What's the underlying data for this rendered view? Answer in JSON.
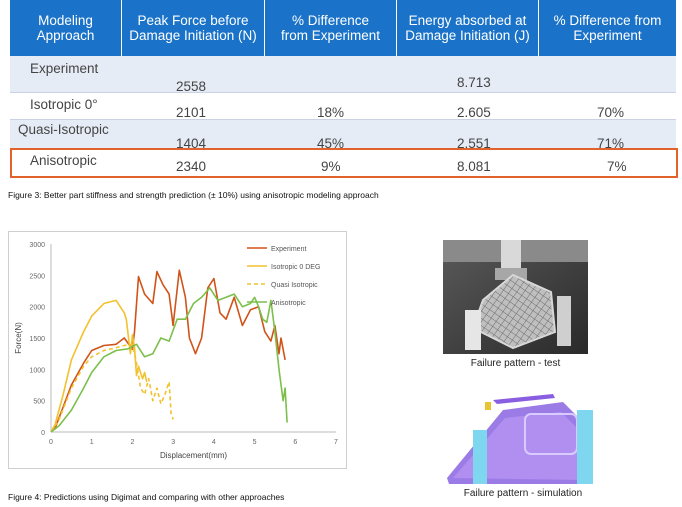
{
  "table": {
    "headers": [
      [
        "Modeling",
        "Approach"
      ],
      [
        "Peak Force before",
        "Damage Initiation (N)"
      ],
      [
        "% Difference",
        "from Experiment"
      ],
      [
        "Energy absorbed at",
        "Damage Initiation (J)"
      ],
      [
        "% Difference from",
        "Experiment"
      ]
    ],
    "rows": [
      {
        "approach": "Experiment",
        "peak_force": "2558",
        "force_diff": "",
        "energy": "8.713",
        "energy_diff": ""
      },
      {
        "approach": "Isotropic 0°",
        "peak_force": "2101",
        "force_diff": "18%",
        "energy": "2.605",
        "energy_diff": "70%"
      },
      {
        "approach": "Quasi-Isotropic",
        "peak_force": "1404",
        "force_diff": "45%",
        "energy": "2.551",
        "energy_diff": "71%"
      },
      {
        "approach": "Anisotropic",
        "peak_force": "2340",
        "force_diff": "9%",
        "energy": "8.081",
        "energy_diff": "7%"
      }
    ],
    "highlight_color": "#e2622b",
    "header_color": "#1a73c8"
  },
  "captions": {
    "figure3": "Figure 3: Better part stiffness and strength prediction (± 10%) using anisotropic modeling approach",
    "figure4": "Figure 4: Predictions using Digimat and comparing with other approaches"
  },
  "photos": {
    "test_label": "Failure pattern - test",
    "simulation_label": "Failure pattern - simulation"
  },
  "chart_data": {
    "type": "line",
    "title": "",
    "xlabel": "Displacement(mm)",
    "ylabel": "Force(N)",
    "xlim": [
      0,
      7
    ],
    "ylim": [
      0,
      3000
    ],
    "xticks": [
      0,
      1,
      2,
      3,
      4,
      5,
      6,
      7
    ],
    "yticks": [
      0,
      500,
      1000,
      1500,
      2000,
      2500,
      3000
    ],
    "legend_position": "top-right",
    "series": [
      {
        "name": "Experiment",
        "color": "#d0541a",
        "dash": "solid",
        "x": [
          0,
          0.1,
          0.3,
          0.5,
          0.8,
          1.0,
          1.3,
          1.6,
          1.8,
          2.0,
          2.05,
          2.15,
          2.3,
          2.5,
          2.6,
          2.75,
          2.9,
          3.0,
          3.15,
          3.3,
          3.4,
          3.55,
          3.7,
          3.85,
          4.0,
          4.15,
          4.3,
          4.5,
          4.7,
          4.9,
          5.1,
          5.25,
          5.4,
          5.5,
          5.6,
          5.65,
          5.75
        ],
        "y": [
          0,
          60,
          400,
          750,
          1100,
          1300,
          1380,
          1400,
          1500,
          1320,
          1600,
          2480,
          2200,
          2050,
          2560,
          2350,
          2200,
          1700,
          2580,
          2150,
          1500,
          1250,
          1500,
          2300,
          2450,
          1900,
          1800,
          2150,
          1700,
          1950,
          2000,
          1600,
          1450,
          1700,
          1250,
          1500,
          1150
        ]
      },
      {
        "name": "Isotropic 0 DEG",
        "color": "#f2c12e",
        "dash": "solid",
        "x": [
          0,
          0.1,
          0.3,
          0.5,
          0.8,
          1.0,
          1.3,
          1.6,
          1.8,
          1.85,
          1.95,
          2.0,
          2.05,
          2.1,
          2.15,
          2.25,
          2.3,
          2.35
        ],
        "y": [
          0,
          120,
          600,
          1150,
          1600,
          1850,
          2050,
          2100,
          1900,
          1800,
          1250,
          1550,
          1350,
          900,
          1050,
          850,
          950,
          800
        ]
      },
      {
        "name": "Quasi Isotropic",
        "color": "#f2c12e",
        "dash": "dashed",
        "x": [
          0,
          0.2,
          0.5,
          0.8,
          1.0,
          1.3,
          1.5,
          1.8,
          2.0,
          2.1,
          2.2,
          2.3,
          2.4,
          2.5,
          2.6,
          2.7,
          2.8,
          2.9,
          2.95,
          3.0
        ],
        "y": [
          0,
          200,
          700,
          1050,
          1200,
          1300,
          1330,
          1380,
          1400,
          1100,
          700,
          600,
          850,
          500,
          700,
          450,
          600,
          800,
          300,
          200
        ]
      },
      {
        "name": "Anisotropic",
        "color": "#7cbf4a",
        "dash": "solid",
        "x": [
          0,
          0.2,
          0.5,
          0.8,
          1.0,
          1.3,
          1.6,
          1.9,
          2.1,
          2.3,
          2.5,
          2.7,
          2.9,
          3.1,
          3.3,
          3.5,
          3.7,
          3.9,
          4.1,
          4.3,
          4.5,
          4.7,
          4.9,
          5.0,
          5.1,
          5.2,
          5.3,
          5.4,
          5.5,
          5.6,
          5.7,
          5.75,
          5.8
        ],
        "y": [
          0,
          100,
          350,
          700,
          950,
          1200,
          1300,
          1330,
          1400,
          1200,
          1250,
          1500,
          1450,
          1800,
          1800,
          2050,
          2150,
          2300,
          2100,
          2150,
          2200,
          2000,
          2050,
          2150,
          2000,
          1800,
          1750,
          2100,
          1600,
          1000,
          500,
          700,
          150
        ]
      }
    ]
  }
}
